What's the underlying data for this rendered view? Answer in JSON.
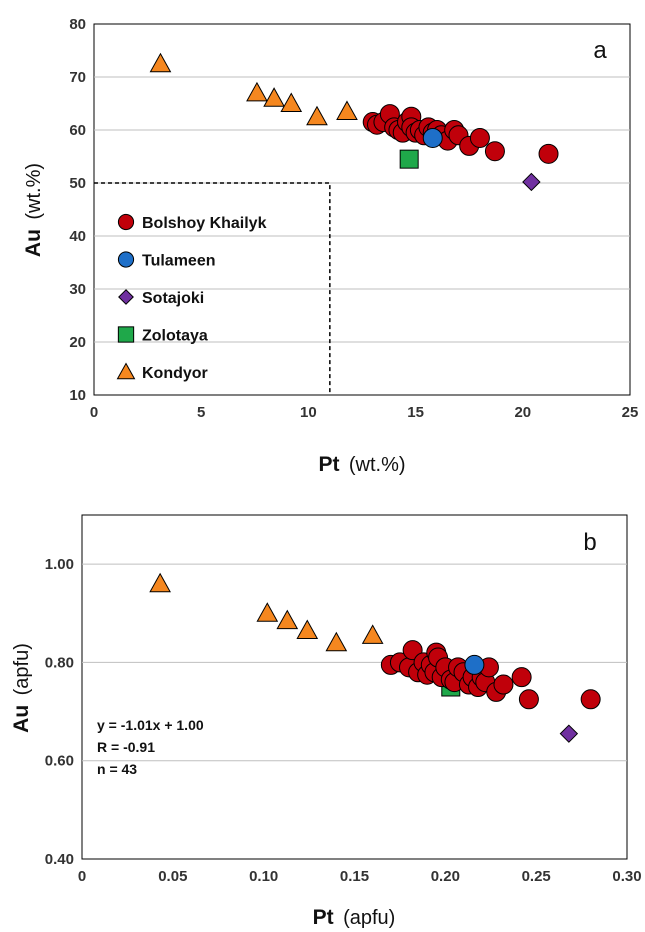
{
  "colors": {
    "bolshoy": "#c0000a",
    "tulameen": "#1e6fc8",
    "sotajoki": "#7030a0",
    "zolotaya": "#1fa84a",
    "kondyor": "#f5871f",
    "grid": "#bfbfbf"
  },
  "chart_data": [
    {
      "type": "scatter",
      "panel_label": "a",
      "xlabel_main": "Pt",
      "xlabel_unit": "(wt.%)",
      "ylabel_main": "Au",
      "ylabel_unit": "(wt.%)",
      "xlim": [
        0,
        25
      ],
      "ylim": [
        10,
        80
      ],
      "x_ticks": [
        "0",
        "5",
        "10",
        "15",
        "20",
        "25"
      ],
      "y_ticks": [
        "10",
        "20",
        "30",
        "40",
        "50",
        "60",
        "70",
        "80"
      ],
      "grid": "horizontal",
      "legend_position": "lower-left",
      "legend_box_limits": {
        "x_max": 11,
        "y_max": 50
      },
      "series": [
        {
          "name": "Bolshoy Khailyk",
          "marker": "circle",
          "color_key": "bolshoy",
          "points": [
            [
              13.0,
              61.5
            ],
            [
              13.2,
              61.0
            ],
            [
              13.5,
              61.5
            ],
            [
              13.8,
              63.0
            ],
            [
              14.0,
              60.5
            ],
            [
              14.2,
              60.0
            ],
            [
              14.4,
              59.5
            ],
            [
              14.6,
              61.5
            ],
            [
              14.8,
              62.5
            ],
            [
              14.8,
              60.5
            ],
            [
              15.0,
              59.5
            ],
            [
              15.2,
              60.0
            ],
            [
              15.4,
              59.0
            ],
            [
              15.6,
              60.5
            ],
            [
              15.8,
              59.5
            ],
            [
              16.0,
              60.0
            ],
            [
              16.2,
              59.0
            ],
            [
              16.5,
              58.0
            ],
            [
              16.8,
              60.0
            ],
            [
              17.0,
              59.0
            ],
            [
              17.5,
              57.0
            ],
            [
              18.0,
              58.5
            ],
            [
              18.7,
              56.0
            ],
            [
              21.2,
              55.5
            ]
          ]
        },
        {
          "name": "Tulameen",
          "marker": "circle",
          "color_key": "tulameen",
          "points": [
            [
              15.8,
              58.5
            ]
          ]
        },
        {
          "name": "Sotajoki",
          "marker": "diamond",
          "color_key": "sotajoki",
          "points": [
            [
              20.4,
              50.2
            ]
          ]
        },
        {
          "name": "Zolotaya",
          "marker": "square",
          "color_key": "zolotaya",
          "points": [
            [
              14.7,
              54.5
            ]
          ]
        },
        {
          "name": "Kondyor",
          "marker": "triangle",
          "color_key": "kondyor",
          "points": [
            [
              3.1,
              72.5
            ],
            [
              7.6,
              67.0
            ],
            [
              8.4,
              66.0
            ],
            [
              9.2,
              65.0
            ],
            [
              10.4,
              62.5
            ],
            [
              11.8,
              63.5
            ]
          ]
        }
      ]
    },
    {
      "type": "scatter",
      "panel_label": "b",
      "xlabel_main": "Pt",
      "xlabel_unit": "(apfu)",
      "ylabel_main": "Au",
      "ylabel_unit": "(apfu)",
      "xlim": [
        0,
        0.3
      ],
      "ylim": [
        0.4,
        1.1
      ],
      "x_ticks": [
        "0",
        "0.05",
        "0.10",
        "0.15",
        "0.20",
        "0.25",
        "0.30"
      ],
      "y_ticks": [
        "0.40",
        "0.60",
        "0.80",
        "1.00"
      ],
      "grid": "horizontal",
      "annotations": [
        "y = -1.01x + 1.00",
        "R = -0.91",
        "n = 43"
      ],
      "series": [
        {
          "name": "Bolshoy Khailyk",
          "marker": "circle",
          "color_key": "bolshoy",
          "points": [
            [
              0.17,
              0.795
            ],
            [
              0.175,
              0.8
            ],
            [
              0.18,
              0.79
            ],
            [
              0.182,
              0.825
            ],
            [
              0.185,
              0.78
            ],
            [
              0.188,
              0.8
            ],
            [
              0.19,
              0.775
            ],
            [
              0.192,
              0.795
            ],
            [
              0.194,
              0.78
            ],
            [
              0.195,
              0.82
            ],
            [
              0.196,
              0.81
            ],
            [
              0.198,
              0.77
            ],
            [
              0.2,
              0.79
            ],
            [
              0.203,
              0.765
            ],
            [
              0.205,
              0.76
            ],
            [
              0.207,
              0.79
            ],
            [
              0.21,
              0.78
            ],
            [
              0.213,
              0.755
            ],
            [
              0.215,
              0.77
            ],
            [
              0.218,
              0.75
            ],
            [
              0.22,
              0.77
            ],
            [
              0.222,
              0.76
            ],
            [
              0.224,
              0.79
            ],
            [
              0.228,
              0.74
            ],
            [
              0.232,
              0.755
            ],
            [
              0.242,
              0.77
            ],
            [
              0.246,
              0.725
            ],
            [
              0.28,
              0.725
            ]
          ]
        },
        {
          "name": "Tulameen",
          "marker": "circle",
          "color_key": "tulameen",
          "points": [
            [
              0.216,
              0.795
            ]
          ]
        },
        {
          "name": "Sotajoki",
          "marker": "diamond",
          "color_key": "sotajoki",
          "points": [
            [
              0.268,
              0.655
            ]
          ]
        },
        {
          "name": "Zolotaya",
          "marker": "square",
          "color_key": "zolotaya",
          "points": [
            [
              0.203,
              0.75
            ]
          ]
        },
        {
          "name": "Kondyor",
          "marker": "triangle",
          "color_key": "kondyor",
          "points": [
            [
              0.043,
              0.96
            ],
            [
              0.102,
              0.9
            ],
            [
              0.113,
              0.885
            ],
            [
              0.124,
              0.865
            ],
            [
              0.14,
              0.84
            ],
            [
              0.16,
              0.855
            ]
          ]
        }
      ]
    }
  ]
}
